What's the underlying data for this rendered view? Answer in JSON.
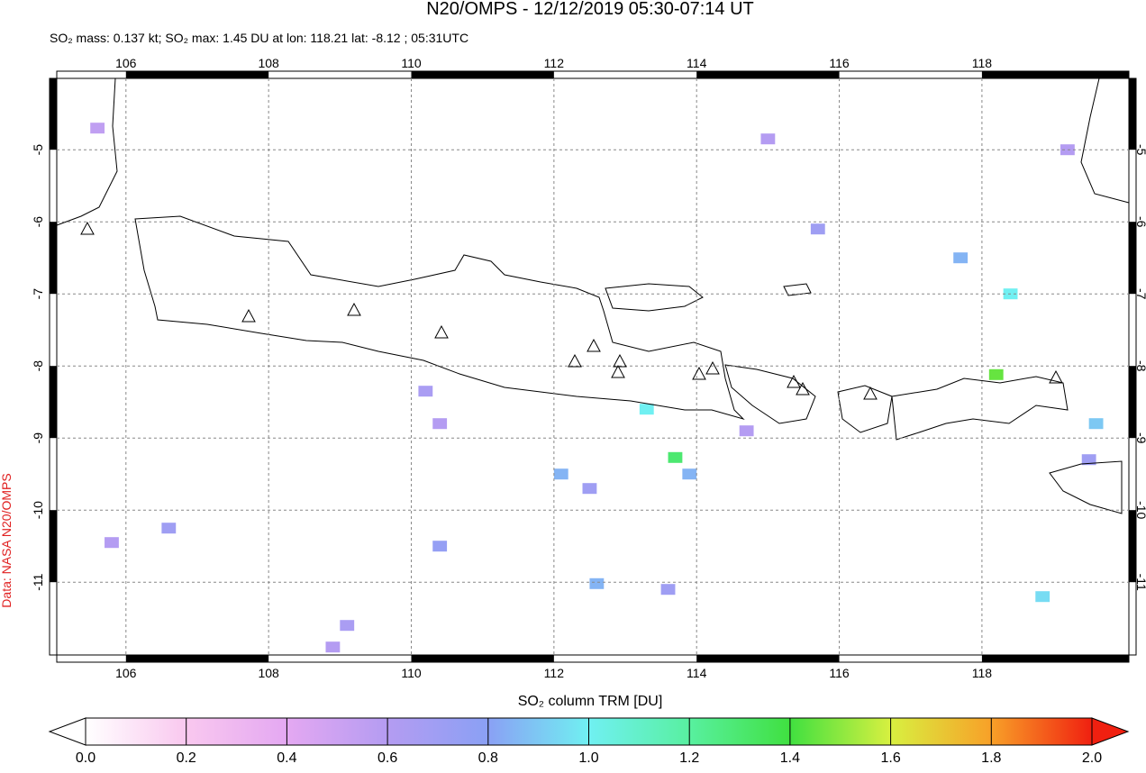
{
  "chart_data": {
    "type": "map",
    "title": "N20/OMPS - 12/12/2019 05:30-07:14 UT",
    "subtitle": "SO₂ mass: 0.137 kt; SO₂ max: 1.45 DU at lon: 118.21 lat: -8.12 ; 05:31UTC",
    "side_label": "Data: NASA N20/OMPS",
    "colorbar_label": "SO₂ column TRM [DU]",
    "xlim": [
      105.03,
      120.06
    ],
    "ylim": [
      -12.01,
      -4.01
    ],
    "xticks": [
      106,
      108,
      110,
      112,
      114,
      116,
      118
    ],
    "yticks": [
      -5,
      -6,
      -7,
      -8,
      -9,
      -10,
      -11
    ],
    "grid": true,
    "clim": [
      0,
      2
    ],
    "cticks": [
      {
        "value": 0,
        "label": "0.0"
      },
      {
        "value": 0.2,
        "label": "0.2"
      },
      {
        "value": 0.4,
        "label": "0.4"
      },
      {
        "value": 0.6,
        "label": "0.6"
      },
      {
        "value": 0.8,
        "label": "0.8"
      },
      {
        "value": 1,
        "label": "1.0"
      },
      {
        "value": 1.2,
        "label": "1.2"
      },
      {
        "value": 1.4,
        "label": "1.4"
      },
      {
        "value": 1.6,
        "label": "1.6"
      },
      {
        "value": 1.8,
        "label": "1.8"
      },
      {
        "value": 2,
        "label": "2.0"
      }
    ],
    "colormap": [
      "#ffffff",
      "#f9c8ef",
      "#e4a8f2",
      "#b49cf2",
      "#8aa0f4",
      "#70f0f2",
      "#58f0a0",
      "#40e040",
      "#d8f040",
      "#f8a028",
      "#f02010"
    ],
    "x": [
      113.7,
      118.2,
      113.3,
      118.4,
      119.6,
      118.85,
      112.6,
      112.1,
      113.9,
      110.4,
      106.6,
      113.6,
      109.1,
      105.8,
      110.2,
      112.5,
      114.7,
      117.7,
      115.7,
      119.2,
      115.0,
      105.6,
      108.9,
      110.4,
      119.5
    ],
    "y": [
      -9.27,
      -8.12,
      -8.6,
      -7.0,
      -8.8,
      -11.2,
      -11.02,
      -9.5,
      -9.5,
      -10.5,
      -10.25,
      -11.1,
      -11.6,
      -10.45,
      -8.35,
      -9.7,
      -8.9,
      -6.5,
      -6.1,
      -5.0,
      -4.85,
      -4.7,
      -11.9,
      -8.8,
      -9.3
    ],
    "values": [
      1.3,
      1.45,
      1.0,
      1.0,
      0.9,
      0.95,
      0.85,
      0.85,
      0.85,
      0.75,
      0.7,
      0.7,
      0.65,
      0.6,
      0.65,
      0.7,
      0.6,
      0.85,
      0.7,
      0.6,
      0.6,
      0.55,
      0.6,
      0.6,
      0.7
    ]
  }
}
